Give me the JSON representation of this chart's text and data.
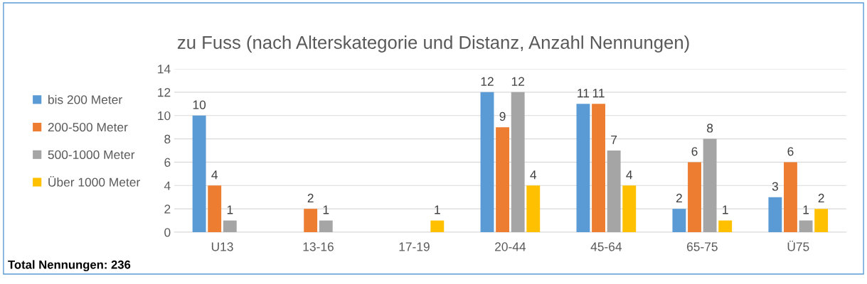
{
  "chart_data": {
    "type": "bar",
    "title": "zu Fuss (nach Alterskategorie und Distanz, Anzahl Nennungen)",
    "categories": [
      "U13",
      "13-16",
      "17-19",
      "20-44",
      "45-64",
      "65-75",
      "Ü75"
    ],
    "series": [
      {
        "name": "bis 200 Meter",
        "color": "#5b9bd5",
        "values": [
          10,
          0,
          0,
          12,
          11,
          2,
          3
        ],
        "value_labels": [
          "10",
          null,
          null,
          "12",
          "11",
          "2",
          "3"
        ]
      },
      {
        "name": "200-500 Meter",
        "color": "#ed7d31",
        "values": [
          4,
          2,
          0,
          9,
          11,
          6,
          6
        ],
        "value_labels": [
          "4",
          "2",
          null,
          "9",
          "11",
          "6",
          "6"
        ]
      },
      {
        "name": "500-1000 Meter",
        "color": "#a5a5a5",
        "values": [
          1,
          1,
          0,
          12,
          7,
          8,
          1
        ],
        "value_labels": [
          "1",
          "1",
          null,
          "12",
          "7",
          "8",
          "1"
        ]
      },
      {
        "name": "Über 1000 Meter",
        "color": "#ffc000",
        "values": [
          0,
          0,
          1,
          4,
          4,
          1,
          2
        ],
        "value_labels": [
          null,
          null,
          "1",
          "4",
          "4",
          "1",
          "2"
        ]
      }
    ],
    "ylim": [
      0,
      14
    ],
    "yticks": [
      0,
      2,
      4,
      6,
      8,
      10,
      12,
      14
    ],
    "grid": "y",
    "legend": "left",
    "annotations": [
      "Total Nennungen: 236"
    ]
  }
}
